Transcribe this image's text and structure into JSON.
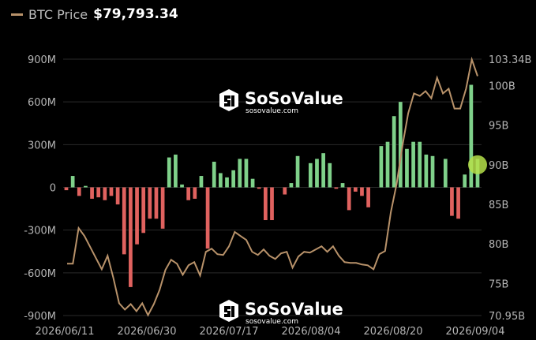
{
  "legend": {
    "label": "BTC Price",
    "value": "$79,793.34",
    "line_color": "#b8926a"
  },
  "watermark": {
    "brand": "SoSoValue",
    "url": "sosovalue.com",
    "icon": "sosovalue-logo-icon"
  },
  "colors": {
    "positive_bar": "#7fd18a",
    "negative_bar": "#e0625f",
    "price_line": "#b8926a",
    "grid": "#2a2a2a",
    "highlight": "#b5e04a"
  },
  "chart_data": {
    "type": "bar",
    "title": "",
    "x_ticks": [
      "2026/06/11",
      "2026/06/30",
      "2026/07/17",
      "2026/08/04",
      "2026/08/20",
      "2026/09/04"
    ],
    "y_left": {
      "ticks": [
        "900M",
        "600M",
        "300M",
        "0",
        "-300M",
        "-600M",
        "-900M"
      ],
      "range": [
        -900,
        900
      ],
      "unit": "M"
    },
    "y_right": {
      "ticks": [
        "103.34B",
        "100B",
        "95B",
        "90B",
        "85B",
        "80B",
        "75B",
        "70.95B"
      ],
      "range": [
        70.95,
        103.34
      ],
      "unit": "B"
    },
    "series": [
      {
        "kind": "bar",
        "values": [
          -20,
          80,
          -60,
          10,
          -80,
          -70,
          -90,
          -60,
          -120,
          -470,
          -700,
          -400,
          -320,
          -220,
          -220,
          -290,
          210,
          230,
          20,
          -90,
          -80,
          80,
          -430,
          180,
          100,
          70,
          120,
          200,
          200,
          60,
          -10,
          -230,
          -230,
          0,
          -50,
          30,
          220,
          0,
          170,
          200,
          240,
          170,
          -10,
          30,
          -160,
          -30,
          -60,
          -140,
          0,
          290,
          320,
          500,
          600,
          270,
          320,
          320,
          230,
          220,
          0,
          200,
          -200,
          -220,
          90,
          720,
          200
        ]
      },
      {
        "kind": "line",
        "name": "BTC Price",
        "values": [
          77.5,
          77.5,
          82,
          81,
          79.6,
          78.2,
          76.8,
          78.5,
          75.7,
          72.5,
          71.7,
          72.4,
          71.5,
          72.5,
          71,
          72.4,
          74.2,
          76.7,
          78,
          77.5,
          76.1,
          77.3,
          77.7,
          76,
          79,
          79.4,
          78.7,
          78.6,
          79.7,
          81.5,
          81,
          80.5,
          79,
          78.6,
          79.3,
          78.5,
          78.1,
          78.8,
          79,
          77,
          78.4,
          79,
          78.9,
          79.3,
          79.7,
          79,
          79.7,
          78.5,
          77.7,
          77.6,
          77.6,
          77.4,
          77.3,
          76.8,
          78.7,
          79.1,
          84,
          87.6,
          92.4,
          96.5,
          99,
          98.7,
          99.3,
          98.4,
          101,
          99,
          99.6,
          97.1,
          97.1,
          99.6,
          103.3,
          101.2
        ]
      }
    ],
    "highlight_point": {
      "bar_value": 200,
      "price": 90
    },
    "grid": true,
    "legend_position": "top-left"
  }
}
